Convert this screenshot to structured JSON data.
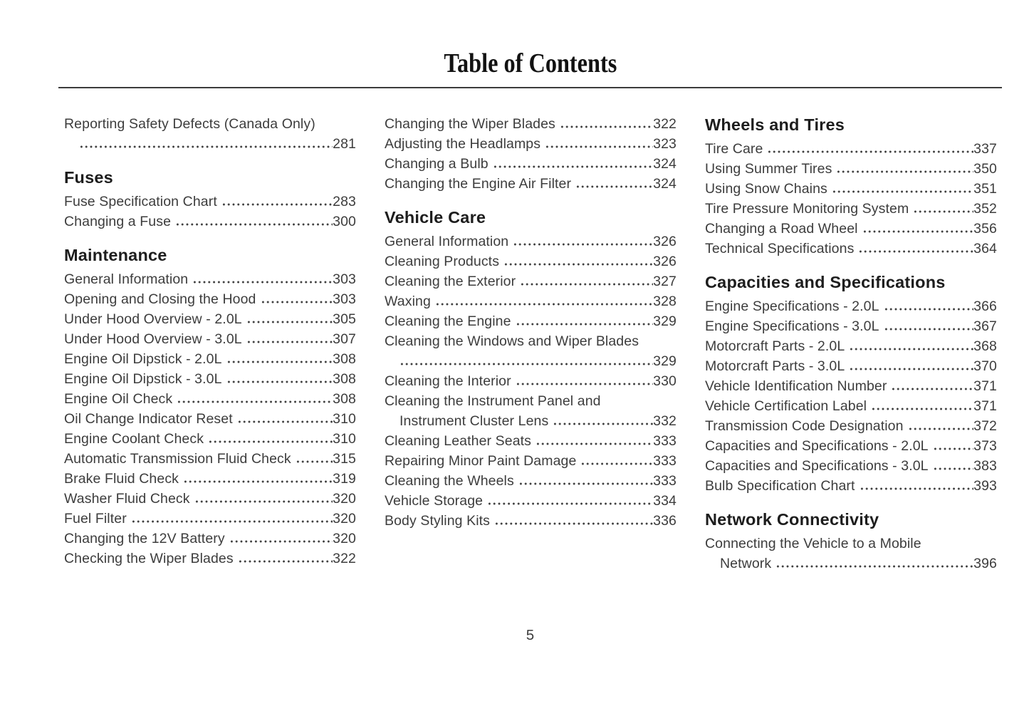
{
  "page": {
    "title": "Table of Contents",
    "page_number": "5"
  },
  "colors": {
    "body_text": "#3d3d3d",
    "heading_text": "#1d1d1d",
    "title_text": "#121212",
    "rule": "#3c3c3c",
    "background": "#ffffff"
  },
  "columns": [
    {
      "blocks": [
        {
          "type": "entry",
          "pre_lines": [
            "Reporting Safety Defects (Canada Only)"
          ],
          "label": "",
          "page": "281"
        },
        {
          "type": "heading",
          "text": "Fuses"
        },
        {
          "type": "entry",
          "label": "Fuse Specification Chart",
          "page": "283"
        },
        {
          "type": "entry",
          "label": "Changing a Fuse",
          "page": "300"
        },
        {
          "type": "heading",
          "text": "Maintenance"
        },
        {
          "type": "entry",
          "label": "General Information",
          "page": "303"
        },
        {
          "type": "entry",
          "label": "Opening and Closing the Hood",
          "page": "303"
        },
        {
          "type": "entry",
          "label": "Under Hood Overview - 2.0L",
          "page": "305"
        },
        {
          "type": "entry",
          "label": "Under Hood Overview - 3.0L",
          "page": "307"
        },
        {
          "type": "entry",
          "label": "Engine Oil Dipstick - 2.0L",
          "page": "308"
        },
        {
          "type": "entry",
          "label": "Engine Oil Dipstick - 3.0L",
          "page": "308"
        },
        {
          "type": "entry",
          "label": "Engine Oil Check",
          "page": "308"
        },
        {
          "type": "entry",
          "label": "Oil Change Indicator Reset",
          "page": "310"
        },
        {
          "type": "entry",
          "label": "Engine Coolant Check",
          "page": "310"
        },
        {
          "type": "entry",
          "label": "Automatic Transmission Fluid Check",
          "page": "315"
        },
        {
          "type": "entry",
          "label": "Brake Fluid Check",
          "page": "319"
        },
        {
          "type": "entry",
          "label": "Washer Fluid Check",
          "page": "320"
        },
        {
          "type": "entry",
          "label": "Fuel Filter",
          "page": "320"
        },
        {
          "type": "entry",
          "label": "Changing the 12V Battery",
          "page": "320"
        },
        {
          "type": "entry",
          "label": "Checking the Wiper Blades",
          "page": "322"
        }
      ]
    },
    {
      "blocks": [
        {
          "type": "entry",
          "label": "Changing the Wiper Blades",
          "page": "322"
        },
        {
          "type": "entry",
          "label": "Adjusting the Headlamps",
          "page": "323"
        },
        {
          "type": "entry",
          "label": "Changing a Bulb",
          "page": "324"
        },
        {
          "type": "entry",
          "label": "Changing the Engine Air Filter",
          "page": "324"
        },
        {
          "type": "heading",
          "text": "Vehicle Care"
        },
        {
          "type": "entry",
          "label": "General Information",
          "page": "326"
        },
        {
          "type": "entry",
          "label": "Cleaning Products",
          "page": "326"
        },
        {
          "type": "entry",
          "label": "Cleaning the Exterior",
          "page": "327"
        },
        {
          "type": "entry",
          "label": "Waxing",
          "page": "328"
        },
        {
          "type": "entry",
          "label": "Cleaning the Engine",
          "page": "329"
        },
        {
          "type": "entry",
          "pre_lines": [
            "Cleaning the Windows and Wiper Blades"
          ],
          "label": "",
          "page": "329"
        },
        {
          "type": "entry",
          "label": "Cleaning the Interior",
          "page": "330"
        },
        {
          "type": "entry",
          "pre_lines": [
            "Cleaning the Instrument Panel and"
          ],
          "label": "Instrument Cluster Lens",
          "page": "332"
        },
        {
          "type": "entry",
          "label": "Cleaning Leather Seats",
          "page": "333"
        },
        {
          "type": "entry",
          "label": "Repairing Minor Paint Damage",
          "page": "333"
        },
        {
          "type": "entry",
          "label": "Cleaning the Wheels",
          "page": "333"
        },
        {
          "type": "entry",
          "label": "Vehicle Storage",
          "page": "334"
        },
        {
          "type": "entry",
          "label": "Body Styling Kits",
          "page": "336"
        }
      ]
    },
    {
      "blocks": [
        {
          "type": "heading",
          "text": "Wheels and Tires"
        },
        {
          "type": "entry",
          "label": "Tire Care",
          "page": "337"
        },
        {
          "type": "entry",
          "label": "Using Summer Tires",
          "page": "350"
        },
        {
          "type": "entry",
          "label": "Using Snow Chains",
          "page": "351"
        },
        {
          "type": "entry",
          "label": "Tire Pressure Monitoring System",
          "page": "352"
        },
        {
          "type": "entry",
          "label": "Changing a Road Wheel",
          "page": "356"
        },
        {
          "type": "entry",
          "label": "Technical Specifications",
          "page": "364"
        },
        {
          "type": "heading",
          "text": "Capacities and Specifications"
        },
        {
          "type": "entry",
          "label": "Engine Specifications - 2.0L",
          "page": "366"
        },
        {
          "type": "entry",
          "label": "Engine Specifications - 3.0L",
          "page": "367"
        },
        {
          "type": "entry",
          "label": "Motorcraft Parts - 2.0L",
          "page": "368"
        },
        {
          "type": "entry",
          "label": "Motorcraft Parts - 3.0L",
          "page": "370"
        },
        {
          "type": "entry",
          "label": "Vehicle Identification Number",
          "page": "371"
        },
        {
          "type": "entry",
          "label": "Vehicle Certification Label",
          "page": "371"
        },
        {
          "type": "entry",
          "label": "Transmission Code Designation",
          "page": "372"
        },
        {
          "type": "entry",
          "label": "Capacities and Specifications - 2.0L",
          "page": "373"
        },
        {
          "type": "entry",
          "label": "Capacities and Specifications - 3.0L",
          "page": "383"
        },
        {
          "type": "entry",
          "label": "Bulb Specification Chart",
          "page": "393"
        },
        {
          "type": "heading",
          "text": "Network Connectivity"
        },
        {
          "type": "entry",
          "pre_lines": [
            "Connecting the Vehicle to a Mobile"
          ],
          "label": "Network",
          "page": "396"
        }
      ]
    }
  ]
}
